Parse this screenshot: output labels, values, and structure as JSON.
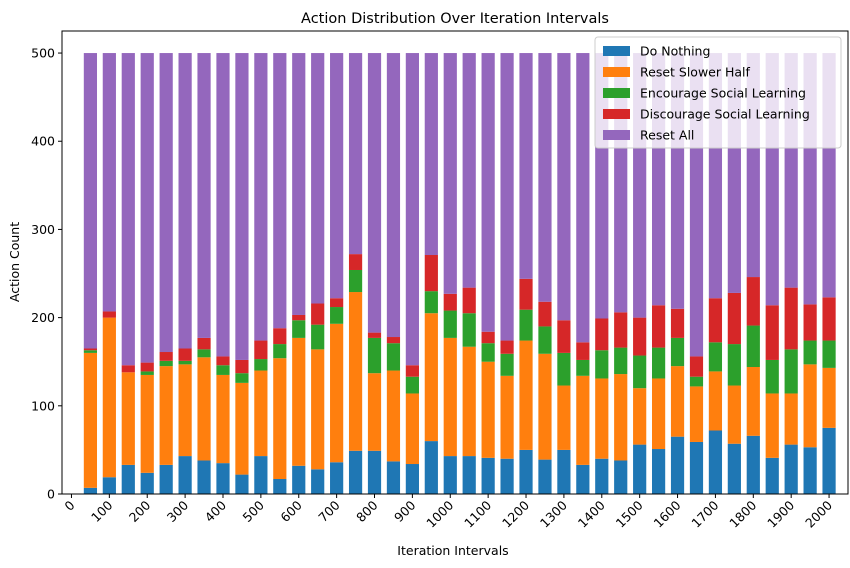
{
  "chart_data": {
    "type": "bar",
    "stacked": true,
    "title": "Action Distribution Over Iteration Intervals",
    "xlabel": "Iteration Intervals",
    "ylabel": "Action Count",
    "ylim": [
      0,
      525
    ],
    "xlim": [
      -25,
      2050
    ],
    "y_ticks": [
      0,
      100,
      200,
      300,
      400,
      500
    ],
    "x_ticks": [
      0,
      100,
      200,
      300,
      400,
      500,
      600,
      700,
      800,
      900,
      1000,
      1100,
      1200,
      1300,
      1400,
      1500,
      1600,
      1700,
      1800,
      1900,
      2000
    ],
    "x_tick_labels": [
      "0",
      "100",
      "200",
      "300",
      "400",
      "500",
      "600",
      "700",
      "800",
      "900",
      "1000",
      "1100",
      "1200",
      "1300",
      "1400",
      "1500",
      "1600",
      "1700",
      "1800",
      "1900",
      "2000"
    ],
    "x_tick_rotation": 45,
    "grid": false,
    "legend_position": "top-right",
    "total_per_interval": 500,
    "x": [
      50,
      100,
      150,
      200,
      250,
      300,
      350,
      400,
      450,
      500,
      550,
      600,
      650,
      700,
      750,
      800,
      850,
      900,
      950,
      1000,
      1050,
      1100,
      1150,
      1200,
      1250,
      1300,
      1350,
      1400,
      1450,
      1500,
      1550,
      1600,
      1650,
      1700,
      1750,
      1800,
      1850,
      1900,
      1950,
      2000
    ],
    "series": [
      {
        "name": "Do Nothing",
        "color": "#1f77b4",
        "values": [
          7,
          19,
          33,
          24,
          33,
          43,
          38,
          35,
          22,
          43,
          17,
          32,
          28,
          36,
          49,
          49,
          37,
          34,
          60,
          43,
          43,
          41,
          40,
          50,
          39,
          50,
          33,
          40,
          38,
          56,
          51,
          65,
          59,
          72,
          57,
          66,
          41,
          56,
          53,
          75
        ]
      },
      {
        "name": "Reset Slower Half",
        "color": "#ff7f0e",
        "values": [
          153,
          181,
          105,
          111,
          112,
          104,
          117,
          100,
          104,
          97,
          137,
          145,
          136,
          157,
          180,
          88,
          103,
          80,
          145,
          134,
          124,
          109,
          94,
          124,
          120,
          73,
          101,
          91,
          98,
          64,
          80,
          80,
          63,
          67,
          66,
          78,
          73,
          58,
          94,
          68
        ]
      },
      {
        "name": "Encourage Social Learning",
        "color": "#2ca02c",
        "values": [
          3,
          0,
          0,
          4,
          6,
          4,
          9,
          11,
          11,
          13,
          16,
          20,
          28,
          19,
          25,
          40,
          31,
          19,
          25,
          31,
          38,
          21,
          25,
          35,
          31,
          37,
          18,
          32,
          30,
          37,
          35,
          32,
          11,
          33,
          47,
          47,
          38,
          50,
          27,
          31
        ]
      },
      {
        "name": "Discourage Social Learning",
        "color": "#d62728",
        "values": [
          2,
          7,
          8,
          10,
          10,
          14,
          13,
          10,
          15,
          21,
          18,
          6,
          24,
          10,
          18,
          6,
          7,
          13,
          41,
          19,
          29,
          13,
          15,
          35,
          28,
          37,
          20,
          36,
          40,
          43,
          48,
          33,
          23,
          50,
          58,
          55,
          62,
          70,
          41,
          49
        ]
      },
      {
        "name": "Reset All",
        "color": "#9467bd",
        "values": [
          335,
          293,
          354,
          351,
          339,
          335,
          323,
          344,
          348,
          326,
          312,
          297,
          284,
          278,
          228,
          317,
          322,
          354,
          229,
          273,
          266,
          316,
          326,
          256,
          282,
          303,
          328,
          301,
          294,
          300,
          286,
          290,
          344,
          278,
          272,
          254,
          286,
          266,
          285,
          277
        ]
      }
    ]
  }
}
